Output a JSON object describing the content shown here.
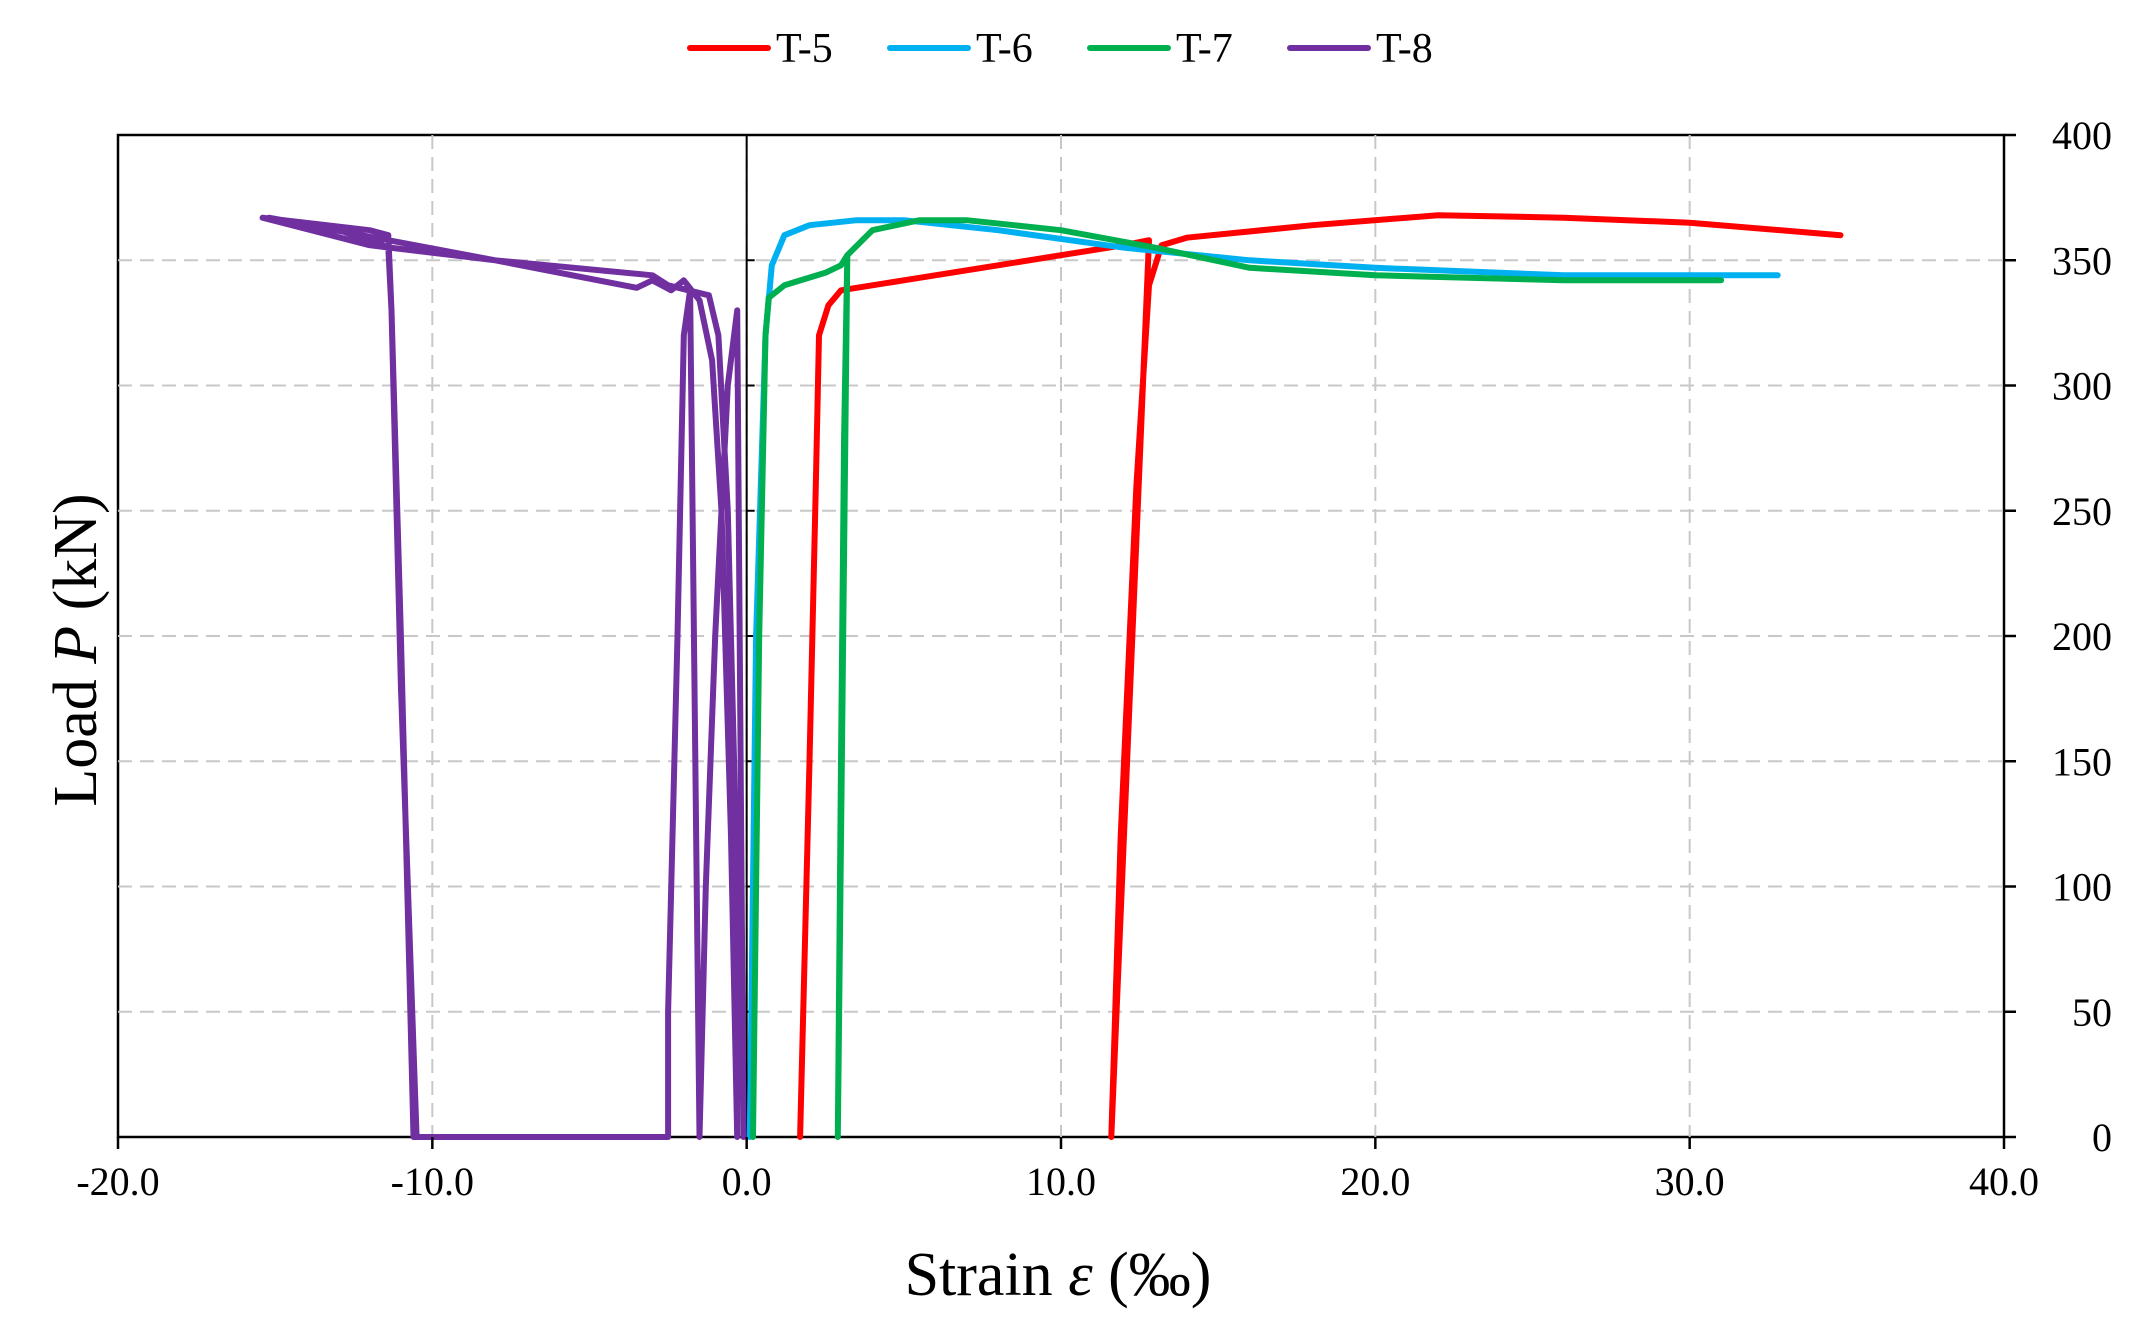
{
  "chart_data": {
    "type": "line",
    "title": "",
    "xlabel": "Strain ε (‰)",
    "xlabel_prefix": "Strain ",
    "xlabel_symbol": "ε",
    "xlabel_suffix": " (‰)",
    "ylabel": "Load P (kN)",
    "ylabel_prefix": "Load ",
    "ylabel_symbol": "P",
    "ylabel_suffix": " (kN)",
    "xlim": [
      -20,
      40
    ],
    "ylim": [
      0,
      400
    ],
    "x_ticks": [
      "-20.0",
      "-10.0",
      "0.0",
      "10.0",
      "20.0",
      "30.0",
      "40.0"
    ],
    "y_ticks": [
      "0",
      "50",
      "100",
      "150",
      "200",
      "250",
      "300",
      "350",
      "400"
    ],
    "y_axis_side": "right",
    "grid": true,
    "legend_position": "top-center",
    "series": [
      {
        "name": "T-5",
        "color": "#ff0000",
        "points": [
          [
            1.7,
            0
          ],
          [
            2.0,
            150
          ],
          [
            2.2,
            260
          ],
          [
            2.3,
            320
          ],
          [
            2.6,
            332
          ],
          [
            3.0,
            338
          ],
          [
            5.0,
            342
          ],
          [
            8.0,
            348
          ],
          [
            10.0,
            352
          ],
          [
            12.0,
            356
          ],
          [
            12.8,
            358
          ],
          [
            11.6,
            0
          ],
          [
            11.9,
            120
          ],
          [
            12.4,
            260
          ],
          [
            12.8,
            340
          ],
          [
            13.2,
            356
          ],
          [
            14.0,
            359
          ],
          [
            18.0,
            364
          ],
          [
            22.0,
            368
          ],
          [
            26.0,
            367
          ],
          [
            30.0,
            365
          ],
          [
            34.8,
            360
          ]
        ]
      },
      {
        "name": "T-6",
        "color": "#00b0f0",
        "points": [
          [
            0.1,
            0
          ],
          [
            0.3,
            200
          ],
          [
            0.6,
            320
          ],
          [
            0.8,
            348
          ],
          [
            1.2,
            360
          ],
          [
            2.0,
            364
          ],
          [
            3.5,
            366
          ],
          [
            5.0,
            366
          ],
          [
            8.0,
            362
          ],
          [
            12.0,
            355
          ],
          [
            16.0,
            350
          ],
          [
            20.0,
            347
          ],
          [
            26.0,
            344
          ],
          [
            32.8,
            344
          ]
        ]
      },
      {
        "name": "T-7",
        "color": "#00b050",
        "points": [
          [
            0.2,
            0
          ],
          [
            0.4,
            200
          ],
          [
            0.6,
            320
          ],
          [
            0.7,
            335
          ],
          [
            1.2,
            340
          ],
          [
            2.5,
            345
          ],
          [
            3.0,
            348
          ],
          [
            3.2,
            352
          ],
          [
            2.9,
            0
          ],
          [
            3.0,
            150
          ],
          [
            3.1,
            280
          ],
          [
            3.2,
            352
          ],
          [
            4.0,
            362
          ],
          [
            5.5,
            366
          ],
          [
            7.0,
            366
          ],
          [
            10.0,
            362
          ],
          [
            13.0,
            355
          ],
          [
            16.0,
            347
          ],
          [
            20.0,
            344
          ],
          [
            26.0,
            342
          ],
          [
            31.0,
            342
          ]
        ]
      },
      {
        "name": "T-8",
        "color": "#7030a0",
        "points": [
          [
            -10.5,
            0
          ],
          [
            -11.0,
            180
          ],
          [
            -11.3,
            330
          ],
          [
            -11.4,
            360
          ],
          [
            -12.0,
            362
          ],
          [
            -15.4,
            367
          ],
          [
            -12.0,
            356
          ],
          [
            -8.0,
            350
          ],
          [
            -3.5,
            339
          ],
          [
            -3.0,
            342
          ],
          [
            -2.4,
            338
          ],
          [
            -2.0,
            342
          ],
          [
            -1.5,
            334
          ],
          [
            -1.1,
            310
          ],
          [
            -0.8,
            250
          ],
          [
            -0.5,
            120
          ],
          [
            -0.3,
            0
          ],
          [
            -0.3,
            100
          ],
          [
            -0.6,
            250
          ],
          [
            -0.9,
            320
          ],
          [
            -1.2,
            336
          ],
          [
            -2.5,
            340
          ],
          [
            -3.0,
            344
          ],
          [
            -8.0,
            350
          ],
          [
            -11.4,
            358
          ],
          [
            -15.2,
            367
          ],
          [
            -13.0,
            362
          ],
          [
            -12.0,
            358
          ],
          [
            -11.4,
            355
          ],
          [
            -11.3,
            330
          ],
          [
            -11.0,
            200
          ],
          [
            -10.6,
            0
          ],
          [
            -10.5,
            0
          ],
          [
            -2.5,
            0
          ],
          [
            -2.5,
            50
          ],
          [
            -2.2,
            200
          ],
          [
            -2.0,
            320
          ],
          [
            -1.8,
            338
          ],
          [
            -1.5,
            0
          ],
          [
            -1.3,
            100
          ],
          [
            -1.0,
            200
          ],
          [
            -0.6,
            300
          ],
          [
            -0.3,
            330
          ],
          [
            -0.1,
            0
          ]
        ]
      }
    ]
  }
}
